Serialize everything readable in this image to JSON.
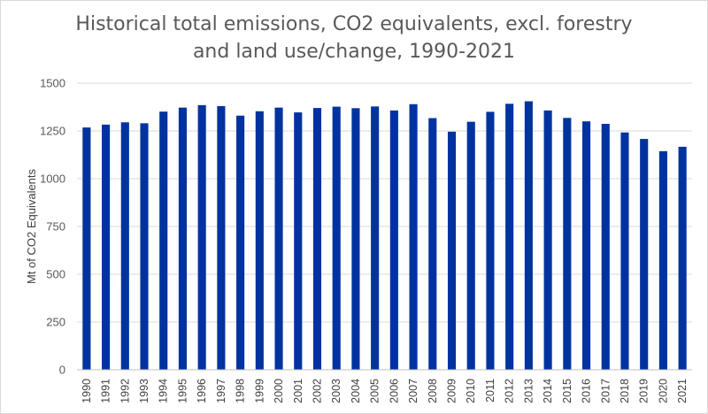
{
  "chart_data": {
    "type": "bar",
    "title_lines": [
      "Historical total emissions, CO2 equivalents, excl. forestry",
      "and land use/change, 1990-2021"
    ],
    "xlabel": "",
    "ylabel": "Mt of CO2 Equivalents",
    "ylim": [
      0,
      1500
    ],
    "yticks": [
      0,
      250,
      500,
      750,
      1000,
      1250,
      1500
    ],
    "grid": true,
    "legend": "none",
    "bar_color": "#0033a0",
    "categories": [
      "1990",
      "1991",
      "1992",
      "1993",
      "1994",
      "1995",
      "1996",
      "1997",
      "1998",
      "1999",
      "2000",
      "2001",
      "2002",
      "2003",
      "2004",
      "2005",
      "2006",
      "2007",
      "2008",
      "2009",
      "2010",
      "2011",
      "2012",
      "2013",
      "2014",
      "2015",
      "2016",
      "2017",
      "2018",
      "2019",
      "2020",
      "2021"
    ],
    "values": [
      1268,
      1283,
      1295,
      1290,
      1351,
      1372,
      1385,
      1380,
      1330,
      1353,
      1372,
      1347,
      1370,
      1377,
      1369,
      1378,
      1357,
      1390,
      1317,
      1246,
      1298,
      1350,
      1392,
      1405,
      1357,
      1318,
      1300,
      1287,
      1242,
      1208,
      1144,
      1167
    ]
  }
}
